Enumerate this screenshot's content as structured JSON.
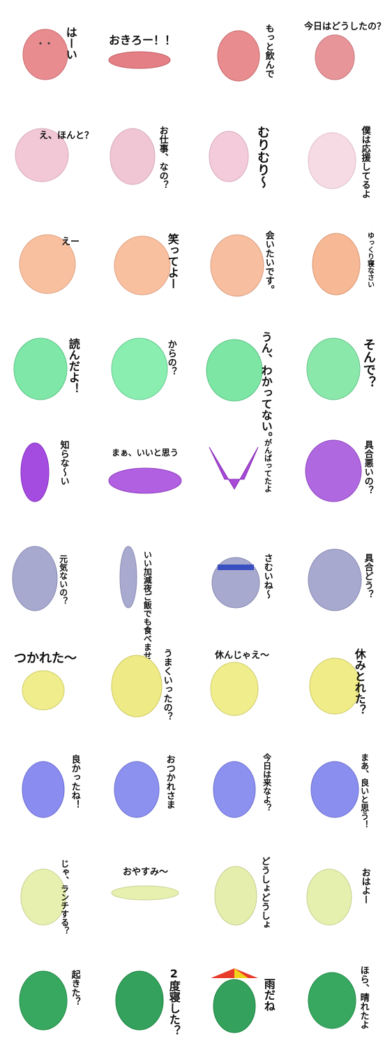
{
  "stickers": [
    {
      "caption": "はーい",
      "color": "#e88c8f"
    },
    {
      "caption": "おきろー！！",
      "color": "#e57f86"
    },
    {
      "caption": "もっと飲んで",
      "color": "#e88c8f"
    },
    {
      "caption": "今日はどうしたの？",
      "color": "#e8959a"
    },
    {
      "caption": "え、ほんと？",
      "color": "#f2c8d6"
    },
    {
      "caption": "お仕事、なの？",
      "color": "#f0c6d4"
    },
    {
      "caption": "むりむり～",
      "color": "#f3cbda"
    },
    {
      "caption": "僕は応援してるよ",
      "color": "#f6dbe4"
    },
    {
      "caption": "えー",
      "color": "#f9c09f"
    },
    {
      "caption": "笑ってよー",
      "color": "#f9c09f"
    },
    {
      "caption": "会いたいです。",
      "color": "#f7bea0"
    },
    {
      "caption": "ゆっくり寝なさい",
      "color": "#f7b896"
    },
    {
      "caption": "読んだよ！",
      "color": "#7fe8a8"
    },
    {
      "caption": "からの？",
      "color": "#8aeeb0"
    },
    {
      "caption": "うん、わかってない。",
      "color": "#7de6a5"
    },
    {
      "caption": "そんで？",
      "color": "#8ae8ab"
    },
    {
      "caption": "知らな～い",
      "color": "#a54ce0"
    },
    {
      "caption": "まぁ、いいと思う",
      "color": "#b060e0"
    },
    {
      "caption": "がんばってたよ",
      "color": "#a84ad8"
    },
    {
      "caption": "具合悪いの？",
      "color": "#b068e0"
    },
    {
      "caption": "元気ないの？",
      "color": "#a7a9cf"
    },
    {
      "caption": "いい加減夜ご飯でも食べませんか？",
      "color": "#a9aad0"
    },
    {
      "caption": "さむいね～",
      "color": "#a7a9cf"
    },
    {
      "caption": "具合どう？",
      "color": "#a7a9cf"
    },
    {
      "caption": "つかれた～",
      "color": "#f0ee8c"
    },
    {
      "caption": "うまくいったの？",
      "color": "#eeea85"
    },
    {
      "caption": "休んじゃえ～",
      "color": "#f0ee8c"
    },
    {
      "caption": "休みとれた？",
      "color": "#f0ec88"
    },
    {
      "caption": "良かったね！",
      "color": "#8a8cf0"
    },
    {
      "caption": "おつかれさま",
      "color": "#8c90ef"
    },
    {
      "caption": "今日は来なよ？",
      "color": "#8c90ef"
    },
    {
      "caption": "まあ、良いと思う！",
      "color": "#8a8eee"
    },
    {
      "caption": "じゃ、ランチする？",
      "color": "#e8f0b0"
    },
    {
      "caption": "おやすみ～",
      "color": "#e8f0b0"
    },
    {
      "caption": "どうしょどうしょ",
      "color": "#e6eeae"
    },
    {
      "caption": "おはよー",
      "color": "#e6f0ae"
    },
    {
      "caption": "起きた？",
      "color": "#38a860"
    },
    {
      "caption": "2度寝した？",
      "color": "#34a25c"
    },
    {
      "caption": "雨だね",
      "color": "#34a25c"
    },
    {
      "caption": "ほら、晴れたよ",
      "color": "#38a860"
    }
  ]
}
